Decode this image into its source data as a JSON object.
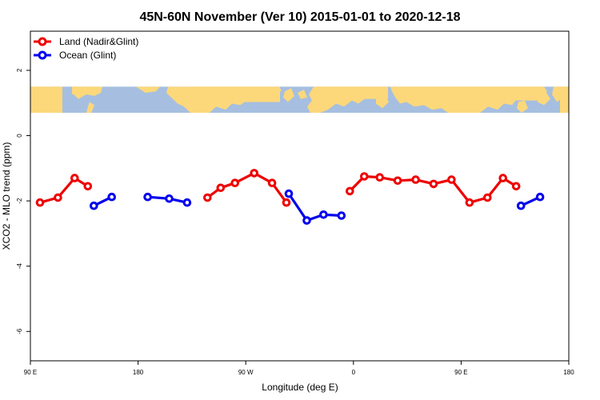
{
  "chart_data": {
    "type": "line",
    "title": "45N-60N November (Ver 10)   2015-01-01 to 2020-12-18",
    "xlabel": "Longitude (deg E)",
    "ylabel": "XCO2 - MLO trend (ppm)",
    "xlim": [
      90,
      540
    ],
    "ylim": [
      -6.9,
      3.2
    ],
    "x_ticks": [
      {
        "value": 90,
        "label": "90 E"
      },
      {
        "value": 180,
        "label": "180"
      },
      {
        "value": 270,
        "label": "90 W"
      },
      {
        "value": 360,
        "label": "0"
      },
      {
        "value": 450,
        "label": "90 E"
      },
      {
        "value": 540,
        "label": "180"
      }
    ],
    "y_ticks": [
      {
        "value": 2,
        "label": "2"
      },
      {
        "value": 0,
        "label": "0"
      },
      {
        "value": -2,
        "label": "-2"
      },
      {
        "value": -4,
        "label": "-4"
      },
      {
        "value": -6,
        "label": "-6"
      }
    ],
    "map_strip": {
      "y_from": 0.7,
      "y_to": 1.5,
      "land_color": "#fcd87a",
      "ocean_color": "#a6bfe0"
    },
    "legend": {
      "position": "top-left"
    },
    "series": [
      {
        "name": "Land (Nadir&Glint)",
        "color": "#ee0000",
        "segments": [
          [
            [
              98,
              -2.05
            ],
            [
              113,
              -1.9
            ],
            [
              127,
              -1.3
            ],
            [
              138,
              -1.55
            ]
          ],
          [
            [
              238,
              -1.9
            ],
            [
              249,
              -1.6
            ],
            [
              261,
              -1.45
            ],
            [
              277,
              -1.15
            ],
            [
              292,
              -1.45
            ],
            [
              304,
              -2.05
            ]
          ],
          [
            [
              357,
              -1.7
            ],
            [
              369,
              -1.25
            ],
            [
              382,
              -1.28
            ],
            [
              397,
              -1.38
            ],
            [
              412,
              -1.35
            ],
            [
              427,
              -1.48
            ],
            [
              442,
              -1.35
            ],
            [
              457,
              -2.05
            ],
            [
              472,
              -1.9
            ],
            [
              485,
              -1.3
            ],
            [
              496,
              -1.55
            ]
          ]
        ]
      },
      {
        "name": "Ocean (Glint)",
        "color": "#0000ee",
        "segments": [
          [
            [
              143,
              -2.15
            ],
            [
              158,
              -1.88
            ]
          ],
          [
            [
              188,
              -1.88
            ],
            [
              206,
              -1.93
            ],
            [
              221,
              -2.05
            ]
          ],
          [
            [
              306,
              -1.78
            ],
            [
              321,
              -2.6
            ],
            [
              335,
              -2.42
            ],
            [
              350,
              -2.45
            ]
          ],
          [
            [
              500,
              -2.15
            ],
            [
              516,
              -1.88
            ]
          ]
        ]
      }
    ]
  }
}
